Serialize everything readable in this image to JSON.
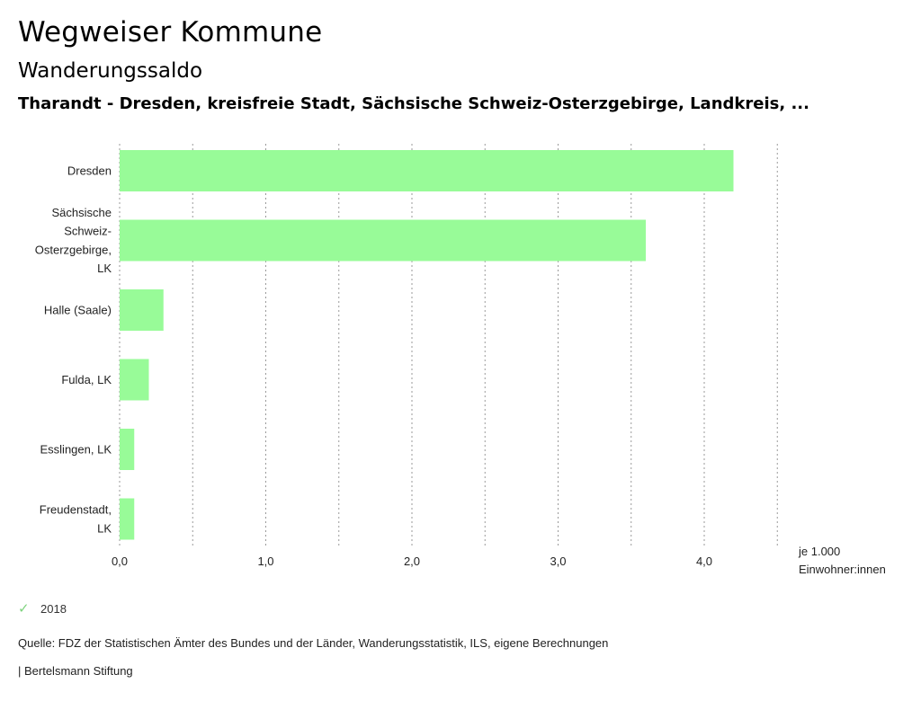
{
  "header": {
    "title": "Wegweiser Kommune",
    "subtitle": "Wanderungssaldo",
    "region": "Tharandt - Dresden, kreisfreie Stadt, Sächsische Schweiz-Osterzgebirge, Landkreis, ..."
  },
  "unit": {
    "line1": "je 1.000",
    "line2": "Einwohner:innen"
  },
  "legend": {
    "year": "2018",
    "color": "#98fb98"
  },
  "footer": {
    "source": "Quelle: FDZ der Statistischen Ämter des Bundes und der Länder, Wanderungsstatistik, ILS, eigene Berechnungen",
    "brand": "| Bertelsmann Stiftung"
  },
  "chart_data": {
    "type": "bar",
    "orientation": "horizontal",
    "categories": [
      [
        "Dresden"
      ],
      [
        "Sächsische",
        "Schweiz-",
        "Osterzgebirge,",
        "LK"
      ],
      [
        "Halle (Saale)"
      ],
      [
        "Fulda, LK"
      ],
      [
        "Esslingen, LK"
      ],
      [
        "Freudenstadt,",
        "LK"
      ]
    ],
    "series": [
      {
        "name": "2018",
        "color": "#98fb98",
        "values": [
          4.2,
          3.6,
          0.3,
          0.2,
          0.1,
          0.1
        ]
      }
    ],
    "xlim": [
      0,
      4.5
    ],
    "xticks": [
      "0,0",
      "1,0",
      "2,0",
      "3,0",
      "4,0"
    ],
    "xtick_values": [
      0,
      1,
      2,
      3,
      4
    ],
    "grid_values": [
      0.5,
      1,
      1.5,
      2,
      2.5,
      3,
      3.5,
      4,
      4.5
    ],
    "grid": "vertical dotted",
    "xlabel": "je 1.000 Einwohner:innen"
  }
}
